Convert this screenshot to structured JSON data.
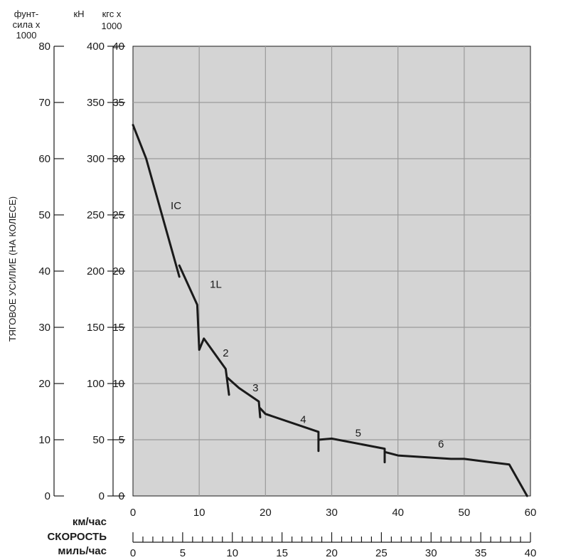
{
  "chart_data": {
    "type": "line",
    "ylabel": "ТЯГОВОЕ УСИЛИЕ (НА КОЛЕСЕ)",
    "xlabel": "СКОРОСТЬ",
    "x_axis_kmh": {
      "unit": "км/час",
      "range": [
        0,
        60
      ],
      "ticks": [
        "0",
        "10",
        "20",
        "30",
        "40",
        "50",
        "60"
      ]
    },
    "x_axis_mph": {
      "unit": "миль/час",
      "range": [
        0,
        40
      ],
      "ticks": [
        "0",
        "5",
        "10",
        "15",
        "20",
        "25",
        "30",
        "35",
        "40"
      ]
    },
    "y_axis_lbf": {
      "unit_lines": [
        "фунт-",
        "сила x",
        "1000"
      ],
      "range": [
        0,
        80
      ],
      "ticks": [
        "0",
        "10",
        "20",
        "30",
        "40",
        "50",
        "60",
        "70",
        "80"
      ]
    },
    "y_axis_kn": {
      "unit": "кН",
      "range": [
        0,
        400
      ],
      "ticks": [
        "0",
        "50",
        "100",
        "150",
        "200",
        "250",
        "300",
        "350",
        "400"
      ]
    },
    "y_axis_kgf": {
      "unit_lines": [
        "кгс x",
        "1000"
      ],
      "range": [
        0,
        40
      ],
      "ticks": [
        "0",
        "5",
        "10",
        "15",
        "20",
        "25",
        "30",
        "35",
        "40"
      ]
    },
    "grid": true,
    "series": [
      {
        "name": "IC",
        "points": [
          [
            0,
            33
          ],
          [
            2,
            30
          ],
          [
            7,
            19.5
          ]
        ]
      },
      {
        "name": "1L",
        "points": [
          [
            7,
            20.5
          ],
          [
            9.7,
            17
          ],
          [
            10,
            13
          ],
          [
            10.7,
            14
          ],
          [
            14,
            11.3
          ],
          [
            14.5,
            9
          ]
        ]
      },
      {
        "name": "2",
        "points": [
          [
            14.3,
            10.5
          ],
          [
            16,
            9.6
          ],
          [
            19,
            8.4
          ],
          [
            19.2,
            7
          ]
        ]
      },
      {
        "name": "3",
        "points": [
          [
            19.2,
            7.8
          ],
          [
            20,
            7.3
          ],
          [
            28,
            5.7
          ],
          [
            28,
            4
          ]
        ]
      },
      {
        "name": "4",
        "points": [
          [
            28,
            5
          ],
          [
            30,
            5.1
          ],
          [
            38,
            4.2
          ],
          [
            38,
            3
          ]
        ]
      },
      {
        "name": "5",
        "points": [
          [
            38.1,
            3.9
          ],
          [
            40,
            3.6
          ],
          [
            48,
            3.3
          ],
          [
            50,
            3.3
          ],
          [
            54,
            3
          ],
          [
            56.8,
            2.8
          ],
          [
            59.5,
            0
          ]
        ]
      }
    ],
    "gear_labels": [
      {
        "text": "IC",
        "x": 6.5,
        "y": 25.5
      },
      {
        "text": "1L",
        "x": 12.5,
        "y": 18.5
      },
      {
        "text": "2",
        "x": 14,
        "y": 12.4
      },
      {
        "text": "3",
        "x": 18.5,
        "y": 9.3
      },
      {
        "text": "4",
        "x": 25.7,
        "y": 6.5
      },
      {
        "text": "5",
        "x": 34,
        "y": 5.3
      },
      {
        "text": "6",
        "x": 46.5,
        "y": 4.3
      }
    ]
  }
}
